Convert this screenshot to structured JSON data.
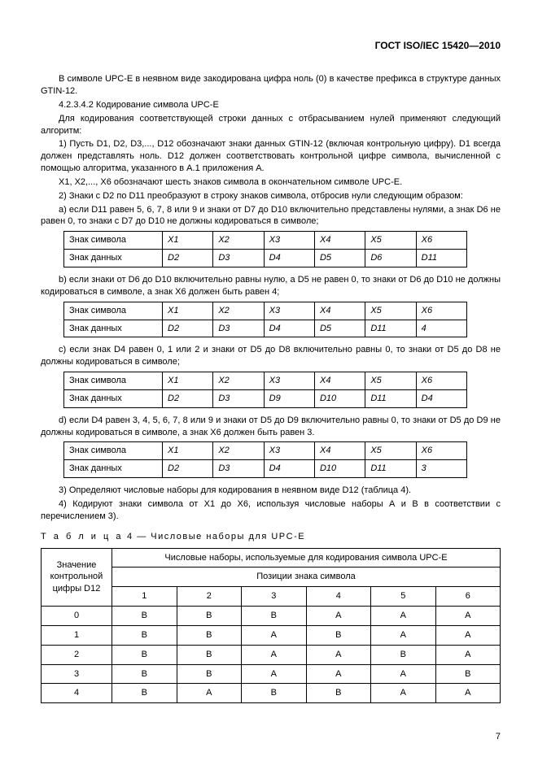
{
  "header": "ГОСТ  ISO/IEC 15420—2010",
  "p1": "В символе UPC-E в неявном виде закодирована цифра ноль (0) в качестве префикса в структуре данных GTIN-12.",
  "p2": "4.2.3.4.2  Кодирование символа UPC-E",
  "p3": "Для кодирования соответствующей строки данных с отбрасыванием нулей применяют следующий алгоритм:",
  "p4": "1) Пусть D1, D2, D3,..., D12 обозначают знаки данных GTIN-12 (включая контрольную цифру). D1 всегда должен представлять ноль. D12 должен соответствовать контрольной цифре символа, вычисленной с помощью алгоритма, указанного в А.1 приложения А.",
  "p5": "X1, X2,..., X6 обозначают шесть знаков символа в окончательном символе UPC-E.",
  "p6": "2) Знаки с D2 по D11 преобразуют в строку знаков символа, отбросив нули следующим образом:",
  "p7": "a) если D11 равен 5, 6, 7, 8 или 9 и знаки от D7 до D10 включительно представлены нулями, а знак D6 не равен 0, то знаки с D7 до D10 не должны кодироваться в символе;",
  "row_lab_sym": "Знак символа",
  "row_lab_dat": "Знак данных",
  "t1_r1": [
    "X1",
    "X2",
    "X3",
    "X4",
    "X5",
    "X6"
  ],
  "t1_r2": [
    "D2",
    "D3",
    "D4",
    "D5",
    "D6",
    "D11"
  ],
  "pB": "b) если знаки от D6 до D10 включительно равны нулю, а D5 не равен 0, то знаки от D6 до D10 не должны кодироваться в символе, а знак X6 должен быть равен 4;",
  "t2_r2": [
    "D2",
    "D3",
    "D4",
    "D5",
    "D11",
    "4"
  ],
  "pC": "c) если знак D4 равен 0, 1 или 2 и знаки от D5 до D8 включительно равны 0, то знаки от D5 до D8 не должны кодироваться в символе;",
  "t3_r2": [
    "D2",
    "D3",
    "D9",
    "D10",
    "D11",
    "D4"
  ],
  "pD": "d) если D4 равен 3, 4, 5, 6, 7, 8 или 9 и знаки от D5 до D9 включительно равны 0, то знаки от D5 до D9 не должны кодироваться в символе, а знак X6 должен быть равен 3.",
  "t4_r2": [
    "D2",
    "D3",
    "D4",
    "D10",
    "D11",
    "3"
  ],
  "p8": "3) Определяют числовые наборы для кодирования в неявном виде D12 (таблица 4).",
  "p9": "4) Кодируют знаки символа от X1 до X6, используя числовые наборы А и В в соответствии с перечислением 3).",
  "caption_pre": "Т а б л и ц а",
  "caption_rest": "   4  — Числовые наборы для UPC-E",
  "t4h_left": "Значение контрольной цифры D12",
  "t4h_top": "Числовые наборы, используемые для кодирования символа UPC-E",
  "t4h_mid": "Позиции знака символа",
  "t4_cols": [
    "1",
    "2",
    "3",
    "4",
    "5",
    "6"
  ],
  "t4_rows": [
    [
      "0",
      "B",
      "B",
      "B",
      "A",
      "A",
      "A"
    ],
    [
      "1",
      "B",
      "B",
      "A",
      "B",
      "A",
      "A"
    ],
    [
      "2",
      "B",
      "B",
      "A",
      "A",
      "B",
      "A"
    ],
    [
      "3",
      "B",
      "B",
      "A",
      "A",
      "A",
      "B"
    ],
    [
      "4",
      "B",
      "A",
      "B",
      "B",
      "A",
      "A"
    ]
  ],
  "pagenum": "7"
}
